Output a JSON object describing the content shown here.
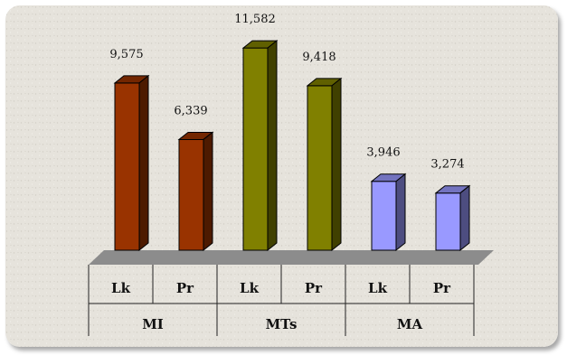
{
  "chart_data": {
    "type": "bar",
    "bar_style": "3d",
    "groups": [
      {
        "label": "MI",
        "color": "#993300",
        "categories": [
          "Lk",
          "Pr"
        ],
        "values": [
          9575,
          6339
        ],
        "value_labels": [
          "9,575",
          "6,339"
        ]
      },
      {
        "label": "MTs",
        "color": "#808000",
        "categories": [
          "Lk",
          "Pr"
        ],
        "values": [
          11582,
          9418
        ],
        "value_labels": [
          "11,582",
          "9,418"
        ]
      },
      {
        "label": "MA",
        "color": "#9999ff",
        "categories": [
          "Lk",
          "Pr"
        ],
        "values": [
          3946,
          3274
        ],
        "value_labels": [
          "3,946",
          "3,274"
        ]
      }
    ],
    "title": "",
    "xlabel": "",
    "ylabel": "",
    "ylim": [
      0,
      12000
    ],
    "grid": false,
    "legend": "none",
    "colors": {
      "floor": "#8c8c8c",
      "background": "#e6e3dc"
    }
  }
}
